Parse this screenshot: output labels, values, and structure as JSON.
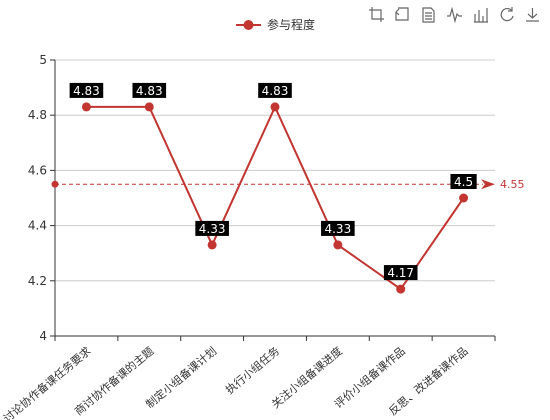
{
  "colors": {
    "series": "#c23531",
    "axis": "#333333",
    "grid": "#cccccc",
    "toolbox": "#666666"
  },
  "toolbox": [
    "crop-icon",
    "undo-crop-icon",
    "data-view-icon",
    "line-chart-icon",
    "bar-chart-icon",
    "restore-icon",
    "download-icon"
  ],
  "chart_data": {
    "type": "line",
    "legend": {
      "position": "top-center"
    },
    "categories": [
      "讨论协作备课任务要求",
      "商讨协作备课的主题",
      "制定小组备课计划",
      "执行小组任务",
      "关注小组备课进度",
      "评价小组备课作品",
      "反思、改进备课作品"
    ],
    "series": [
      {
        "name": "参与程度",
        "values": [
          4.83,
          4.83,
          4.33,
          4.83,
          4.33,
          4.17,
          4.5
        ],
        "labels": [
          "4.83",
          "4.83",
          "4.33",
          "4.83",
          "4.33",
          "4.17",
          "4.5"
        ]
      }
    ],
    "ylim": [
      4,
      5
    ],
    "yticks": [
      "4",
      "4.2",
      "4.4",
      "4.6",
      "4.8",
      "5"
    ],
    "mark_line": {
      "type": "average",
      "value": 4.55,
      "label": "4.55"
    },
    "grid": true
  }
}
